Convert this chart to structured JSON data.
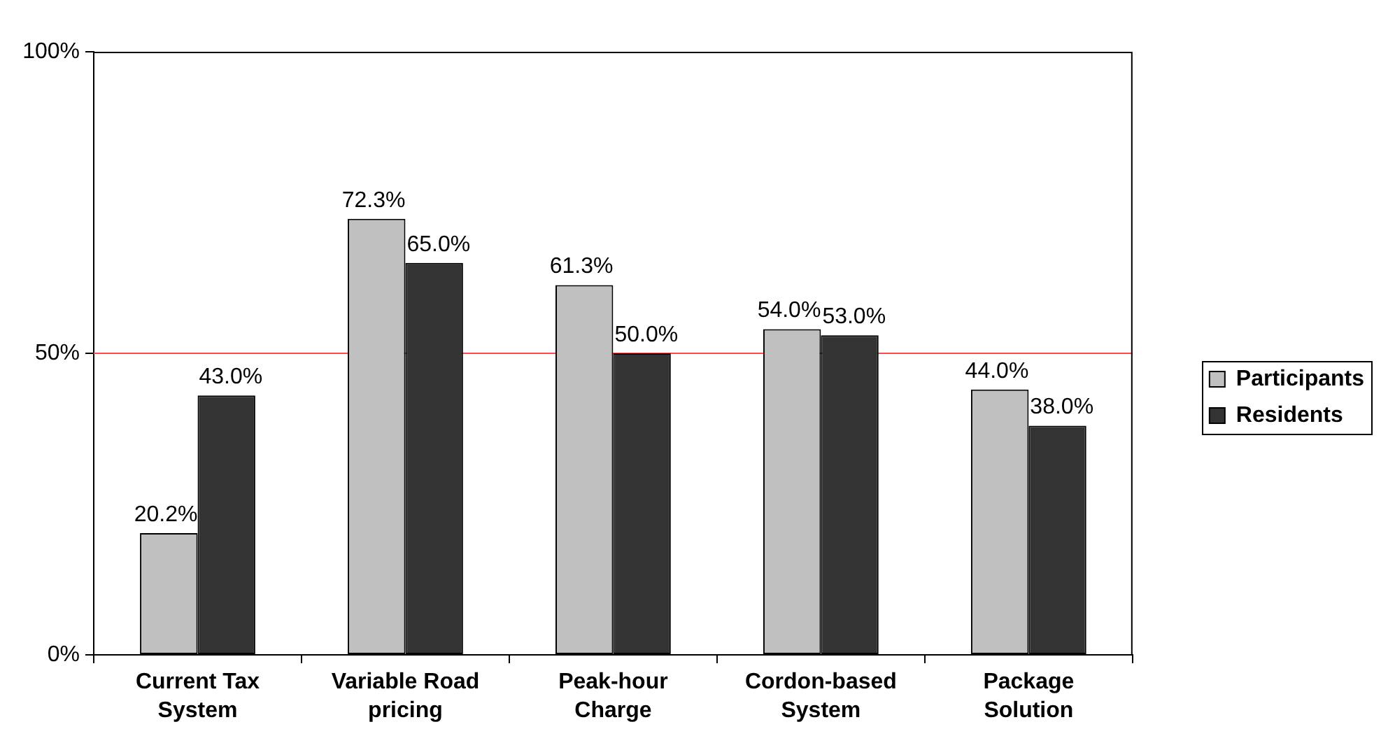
{
  "chart_data": {
    "type": "bar",
    "categories": [
      "Current Tax System",
      "Variable Road pricing",
      "Peak-hour Charge",
      "Cordon-based System",
      "Package Solution"
    ],
    "series": [
      {
        "name": "Participants",
        "color": "#c0c0c0",
        "values": [
          20.2,
          72.3,
          61.3,
          54.0,
          44.0
        ],
        "value_labels": [
          "20.2%",
          "72.3%",
          "61.3%",
          "54.0%",
          "44.0%"
        ]
      },
      {
        "name": "Residents",
        "color": "#333333",
        "values": [
          43.0,
          65.0,
          50.0,
          53.0,
          38.0
        ],
        "value_labels": [
          "43.0%",
          "65.0%",
          "50.0%",
          "53.0%",
          "38.0%"
        ]
      }
    ],
    "ylim": [
      0,
      100
    ],
    "yticks": [
      {
        "value": 0,
        "label": "0%"
      },
      {
        "value": 50,
        "label": "50%"
      },
      {
        "value": 100,
        "label": "100%"
      }
    ],
    "ref_lines": [
      {
        "axis": "y",
        "value": 50,
        "color": "#ff4d4d"
      }
    ],
    "legend": "right"
  }
}
